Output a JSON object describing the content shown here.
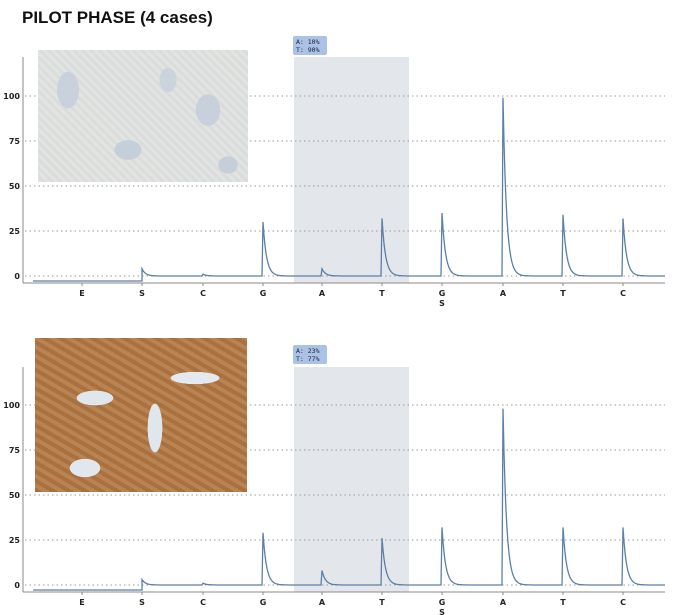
{
  "title": "PILOT PHASE (4 cases)",
  "chart_data": [
    {
      "type": "line",
      "dispensation_order": [
        "E",
        "S",
        "C",
        "G",
        "A",
        "T",
        "G",
        "A",
        "T",
        "C"
      ],
      "values": [
        0,
        4,
        1,
        30,
        4,
        32,
        35,
        99,
        34,
        32
      ],
      "xlabel": "S",
      "yticks": [
        0,
        25,
        50,
        75,
        100
      ],
      "ylim": [
        0,
        120
      ],
      "grid": "horizontal dotted",
      "highlight_region": [
        "A",
        "T"
      ],
      "annotation": [
        "A: 10%",
        "T: 90%"
      ],
      "line_color": "#5b7fa8",
      "highlight_color": "#e3e7ec"
    },
    {
      "type": "line",
      "dispensation_order": [
        "E",
        "S",
        "C",
        "G",
        "A",
        "T",
        "G",
        "A",
        "T",
        "C"
      ],
      "values": [
        0,
        3,
        1,
        29,
        8,
        26,
        32,
        98,
        32,
        32
      ],
      "xlabel": "S",
      "yticks": [
        0,
        25,
        50,
        75,
        100
      ],
      "ylim": [
        0,
        120
      ],
      "grid": "horizontal dotted",
      "highlight_region": [
        "A",
        "T"
      ],
      "annotation": [
        "A: 23%",
        "T: 77%"
      ],
      "line_color": "#5b7fa8",
      "highlight_color": "#e3e7ec"
    }
  ]
}
